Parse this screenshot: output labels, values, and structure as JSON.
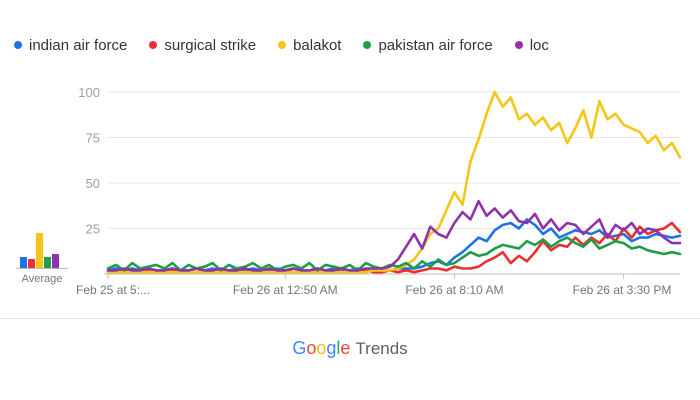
{
  "legend": [
    {
      "label": "indian air force",
      "color": "#1a73e8"
    },
    {
      "label": "surgical strike",
      "color": "#e8312e"
    },
    {
      "label": "balakot",
      "color": "#f5c518"
    },
    {
      "label": "pakistan air force",
      "color": "#1e9e4a"
    },
    {
      "label": "loc",
      "color": "#8e34a8"
    }
  ],
  "average_label": "Average",
  "footer": {
    "brand_letters": [
      "G",
      "o",
      "o",
      "g",
      "l",
      "e"
    ],
    "suffix": "Trends"
  },
  "chart_data": {
    "type": "line",
    "x_tick_labels": [
      "Feb 25 at 5:...",
      "Feb 26 at 12:50 AM",
      "Feb 26 at 8:10 AM",
      "Feb 26 at 3:30 PM"
    ],
    "x_tick_positions": [
      0,
      22,
      43,
      64
    ],
    "x_count": 72,
    "ylim": [
      0,
      100
    ],
    "y_ticks": [
      25,
      50,
      75,
      100
    ],
    "grid": true,
    "legend_position": "top-left",
    "average": [
      11,
      9,
      35,
      11,
      14
    ],
    "series": [
      {
        "name": "indian air force",
        "color": "#1a73e8",
        "values": [
          2,
          3,
          2,
          3,
          2,
          3,
          2,
          2,
          3,
          2,
          2,
          3,
          2,
          3,
          2,
          2,
          3,
          2,
          3,
          2,
          2,
          3,
          2,
          3,
          2,
          2,
          3,
          2,
          3,
          2,
          2,
          3,
          2,
          3,
          2,
          2,
          3,
          3,
          3,
          4,
          6,
          7,
          5,
          9,
          12,
          16,
          20,
          18,
          24,
          27,
          28,
          25,
          30,
          27,
          22,
          25,
          20,
          22,
          24,
          23,
          22,
          24,
          20,
          21,
          22,
          18,
          20,
          20,
          22,
          21,
          20,
          21
        ]
      },
      {
        "name": "surgical strike",
        "color": "#e8312e",
        "values": [
          1,
          1,
          2,
          1,
          1,
          2,
          1,
          1,
          2,
          1,
          1,
          1,
          2,
          1,
          1,
          2,
          1,
          1,
          2,
          1,
          1,
          1,
          2,
          1,
          1,
          2,
          1,
          1,
          2,
          1,
          1,
          1,
          2,
          1,
          1,
          2,
          1,
          2,
          1,
          2,
          3,
          3,
          2,
          4,
          3,
          3,
          4,
          7,
          9,
          12,
          6,
          10,
          7,
          12,
          18,
          13,
          16,
          15,
          20,
          16,
          20,
          17,
          22,
          18,
          25,
          20,
          26,
          22,
          24,
          25,
          28,
          23
        ]
      },
      {
        "name": "balakot",
        "color": "#f5c518",
        "values": [
          1,
          1,
          1,
          1,
          1,
          1,
          1,
          1,
          1,
          1,
          1,
          1,
          1,
          1,
          1,
          1,
          1,
          1,
          1,
          1,
          1,
          1,
          1,
          1,
          1,
          1,
          1,
          1,
          1,
          1,
          1,
          1,
          1,
          2,
          2,
          2,
          3,
          5,
          8,
          14,
          22,
          25,
          35,
          45,
          38,
          62,
          74,
          88,
          100,
          92,
          97,
          85,
          88,
          82,
          86,
          79,
          83,
          72,
          80,
          90,
          75,
          95,
          85,
          88,
          82,
          80,
          78,
          72,
          76,
          68,
          72,
          64
        ]
      },
      {
        "name": "pakistan air force",
        "color": "#1e9e4a",
        "values": [
          3,
          5,
          2,
          6,
          3,
          4,
          5,
          3,
          6,
          2,
          5,
          3,
          4,
          6,
          2,
          5,
          3,
          4,
          6,
          3,
          5,
          2,
          4,
          5,
          3,
          6,
          2,
          5,
          4,
          3,
          5,
          2,
          6,
          4,
          3,
          5,
          4,
          6,
          3,
          7,
          4,
          8,
          5,
          6,
          9,
          12,
          10,
          11,
          14,
          16,
          15,
          14,
          18,
          16,
          19,
          15,
          18,
          20,
          17,
          15,
          19,
          14,
          16,
          18,
          17,
          14,
          15,
          13,
          12,
          11,
          12,
          11
        ]
      },
      {
        "name": "loc",
        "color": "#8e34a8",
        "values": [
          2,
          2,
          3,
          2,
          2,
          3,
          2,
          2,
          3,
          2,
          2,
          3,
          2,
          2,
          3,
          2,
          2,
          3,
          2,
          2,
          3,
          2,
          2,
          3,
          2,
          2,
          3,
          2,
          2,
          3,
          2,
          2,
          3,
          3,
          3,
          4,
          8,
          15,
          22,
          14,
          26,
          22,
          20,
          28,
          34,
          30,
          40,
          32,
          36,
          31,
          35,
          29,
          28,
          33,
          25,
          30,
          24,
          28,
          27,
          22,
          26,
          30,
          20,
          27,
          24,
          28,
          22,
          25,
          24,
          20,
          17,
          17
        ]
      }
    ]
  }
}
